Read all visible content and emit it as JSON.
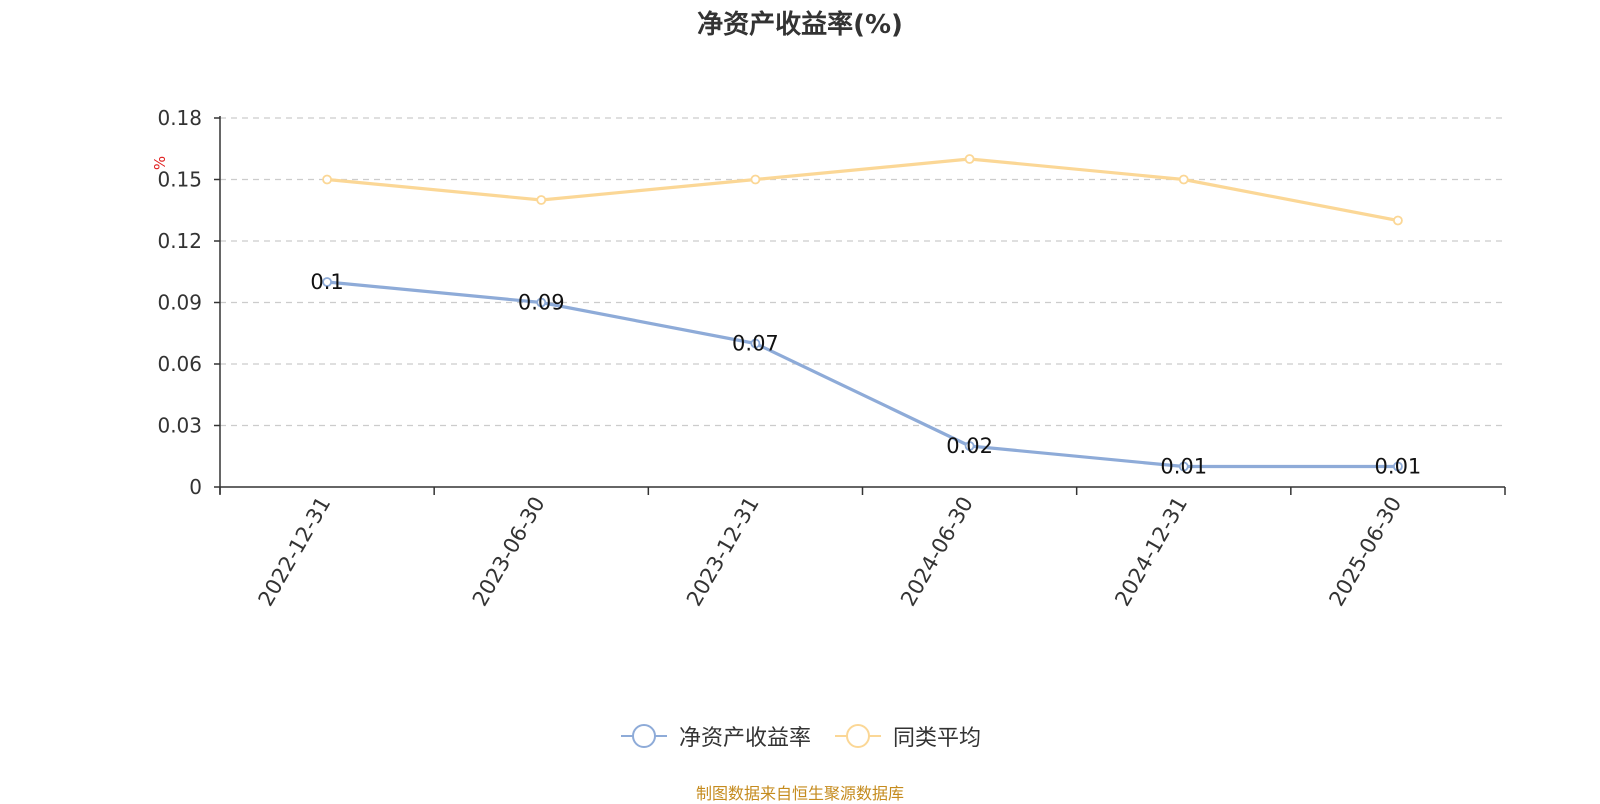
{
  "chart_data": {
    "type": "line",
    "title": "净资产收益率(%)",
    "ylabel": "%",
    "categories": [
      "2022-12-31",
      "2023-06-30",
      "2023-12-31",
      "2024-06-30",
      "2024-12-31",
      "2025-06-30"
    ],
    "ylim": [
      0,
      0.18
    ],
    "yticks": [
      "0",
      "0.03",
      "0.06",
      "0.09",
      "0.12",
      "0.15",
      "0.18"
    ],
    "grid": true,
    "legend_position": "bottom",
    "series": [
      {
        "name": "净资产收益率",
        "values": [
          0.1,
          0.09,
          0.07,
          0.02,
          0.01,
          0.01
        ],
        "labels": [
          "0.1",
          "0.09",
          "0.07",
          "0.02",
          "0.01",
          "0.01"
        ],
        "color": "#8eabd8"
      },
      {
        "name": "同类平均",
        "values": [
          0.15,
          0.14,
          0.15,
          0.16,
          0.15,
          0.13
        ],
        "color": "#fbd796"
      }
    ]
  },
  "source_note": "制图数据来自恒生聚源数据库",
  "colors": {
    "unit_label": "#e02020",
    "source_note": "#c58b1e",
    "grid": "#cccccc"
  }
}
